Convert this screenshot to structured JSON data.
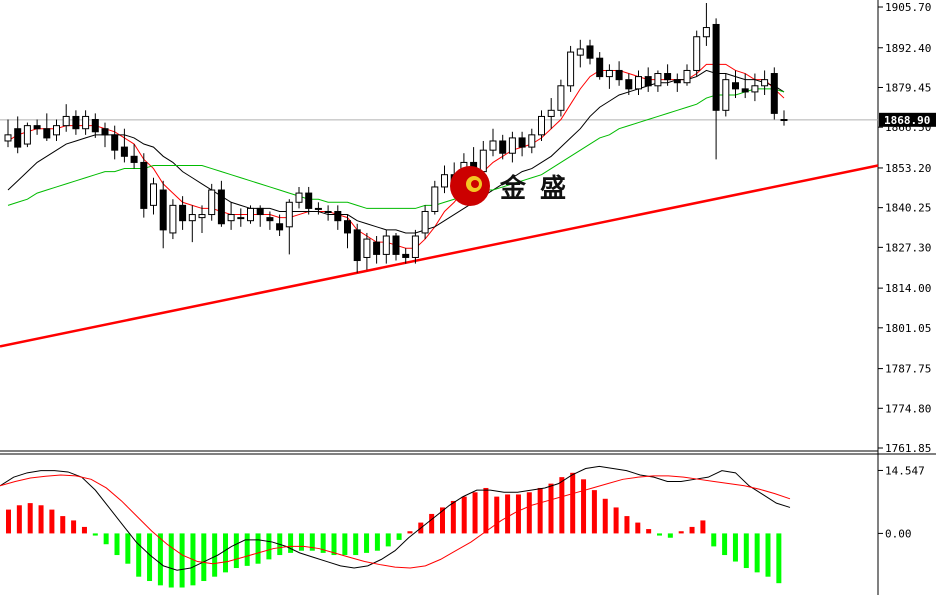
{
  "chart_data": [
    {
      "type": "candlestick",
      "panel": "price",
      "ylim": [
        1761.85,
        1905.7
      ],
      "y_ticks": [
        "1905.70",
        "1892.40",
        "1879.45",
        "1866.50",
        "1853.20",
        "1840.25",
        "1827.30",
        "1814.00",
        "1801.05",
        "1787.75",
        "1774.80",
        "1761.85"
      ],
      "current_price": "1868.90",
      "bull_color": "#ffffff",
      "bear_color": "#000000",
      "ohlc": [
        [
          1862,
          1869,
          1860,
          1864
        ],
        [
          1866,
          1870,
          1858,
          1860
        ],
        [
          1861,
          1868,
          1860,
          1867
        ],
        [
          1867,
          1869,
          1864,
          1866
        ],
        [
          1866,
          1871,
          1862,
          1863
        ],
        [
          1864,
          1869,
          1862,
          1867
        ],
        [
          1867,
          1874,
          1865,
          1870
        ],
        [
          1870,
          1872,
          1864,
          1866
        ],
        [
          1866,
          1872,
          1864,
          1870
        ],
        [
          1869,
          1871,
          1863,
          1865
        ],
        [
          1866,
          1868,
          1860,
          1864
        ],
        [
          1864,
          1867,
          1856,
          1859
        ],
        [
          1860,
          1866,
          1855,
          1857
        ],
        [
          1857,
          1861,
          1853,
          1855
        ],
        [
          1855,
          1858,
          1837,
          1840
        ],
        [
          1841,
          1850,
          1838,
          1848
        ],
        [
          1846,
          1849,
          1827,
          1833
        ],
        [
          1832,
          1843,
          1830,
          1841
        ],
        [
          1841,
          1844,
          1833,
          1836
        ],
        [
          1836,
          1841,
          1829,
          1838
        ],
        [
          1837,
          1841,
          1832,
          1838
        ],
        [
          1838,
          1848,
          1836,
          1846
        ],
        [
          1846,
          1849,
          1834,
          1835
        ],
        [
          1836,
          1842,
          1833,
          1838
        ],
        [
          1837,
          1840,
          1834,
          1837
        ],
        [
          1836,
          1841,
          1835,
          1840
        ],
        [
          1840,
          1841,
          1834,
          1838
        ],
        [
          1837,
          1839,
          1833,
          1836
        ],
        [
          1835,
          1838,
          1831,
          1833
        ],
        [
          1834,
          1843,
          1825,
          1842
        ],
        [
          1842,
          1847,
          1840,
          1845
        ],
        [
          1845,
          1847,
          1838,
          1840
        ],
        [
          1840,
          1842,
          1838,
          1840
        ],
        [
          1839,
          1841,
          1836,
          1839
        ],
        [
          1839,
          1841,
          1833,
          1836
        ],
        [
          1836,
          1838,
          1827,
          1832
        ],
        [
          1833,
          1835,
          1819,
          1823
        ],
        [
          1824,
          1832,
          1820,
          1830
        ],
        [
          1829,
          1831,
          1822,
          1825
        ],
        [
          1825,
          1833,
          1822,
          1831
        ],
        [
          1831,
          1832,
          1823,
          1825
        ],
        [
          1825,
          1827,
          1822,
          1824
        ],
        [
          1824,
          1833,
          1822,
          1831
        ],
        [
          1832,
          1841,
          1830,
          1839
        ],
        [
          1839,
          1849,
          1838,
          1847
        ],
        [
          1847,
          1854,
          1845,
          1851
        ],
        [
          1851,
          1855,
          1848,
          1849
        ],
        [
          1849,
          1858,
          1846,
          1855
        ],
        [
          1855,
          1860,
          1851,
          1852
        ],
        [
          1852,
          1862,
          1850,
          1859
        ],
        [
          1859,
          1866,
          1857,
          1862
        ],
        [
          1862,
          1864,
          1856,
          1858
        ],
        [
          1858,
          1865,
          1855,
          1863
        ],
        [
          1863,
          1865,
          1857,
          1860
        ],
        [
          1860,
          1866,
          1858,
          1864
        ],
        [
          1864,
          1872,
          1862,
          1870
        ],
        [
          1870,
          1876,
          1866,
          1872
        ],
        [
          1872,
          1882,
          1870,
          1880
        ],
        [
          1880,
          1893,
          1878,
          1891
        ],
        [
          1890,
          1895,
          1886,
          1892
        ],
        [
          1893,
          1895,
          1887,
          1889
        ],
        [
          1889,
          1891,
          1882,
          1883
        ],
        [
          1883,
          1887,
          1879,
          1885
        ],
        [
          1885,
          1888,
          1880,
          1882
        ],
        [
          1882,
          1884,
          1877,
          1879
        ],
        [
          1879,
          1885,
          1877,
          1883
        ],
        [
          1883,
          1886,
          1878,
          1880
        ],
        [
          1880,
          1885,
          1878,
          1884
        ],
        [
          1884,
          1887,
          1880,
          1882
        ],
        [
          1882,
          1884,
          1878,
          1881
        ],
        [
          1881,
          1887,
          1880,
          1885
        ],
        [
          1885,
          1898,
          1883,
          1896
        ],
        [
          1896,
          1907,
          1893,
          1899
        ],
        [
          1900,
          1902,
          1856,
          1872
        ],
        [
          1872,
          1884,
          1870,
          1882
        ],
        [
          1881,
          1885,
          1876,
          1879
        ],
        [
          1879,
          1884,
          1876,
          1878
        ],
        [
          1878,
          1884,
          1875,
          1880
        ],
        [
          1880,
          1885,
          1877,
          1882
        ],
        [
          1884,
          1886,
          1869,
          1871
        ],
        [
          1869,
          1872,
          1867,
          1869
        ]
      ],
      "series": [
        {
          "color": "#ff0000",
          "values": [
            1862,
            1864,
            1865,
            1866,
            1866,
            1866,
            1867,
            1867,
            1867,
            1867,
            1866,
            1865,
            1863,
            1861,
            1856,
            1853,
            1848,
            1845,
            1842,
            1841,
            1840,
            1840,
            1839,
            1838,
            1838,
            1838,
            1838,
            1838,
            1837,
            1837,
            1838,
            1839,
            1839,
            1839,
            1838,
            1837,
            1833,
            1831,
            1829,
            1829,
            1828,
            1827,
            1827,
            1830,
            1834,
            1839,
            1842,
            1846,
            1849,
            1852,
            1855,
            1857,
            1859,
            1860,
            1861,
            1863,
            1866,
            1869,
            1874,
            1879,
            1883,
            1885,
            1885,
            1885,
            1884,
            1883,
            1882,
            1882,
            1882,
            1882,
            1882,
            1884,
            1887,
            1887,
            1887,
            1885,
            1884,
            1882,
            1882,
            1879,
            1876
          ]
        },
        {
          "color": "#000000",
          "values": [
            1846,
            1849,
            1852,
            1855,
            1857,
            1859,
            1861,
            1862,
            1863,
            1864,
            1864,
            1864,
            1864,
            1863,
            1861,
            1860,
            1857,
            1855,
            1852,
            1850,
            1848,
            1846,
            1844,
            1842,
            1841,
            1840,
            1840,
            1840,
            1839,
            1839,
            1839,
            1839,
            1839,
            1838,
            1838,
            1838,
            1836,
            1835,
            1834,
            1833,
            1833,
            1832,
            1832,
            1833,
            1834,
            1836,
            1838,
            1840,
            1842,
            1844,
            1846,
            1848,
            1850,
            1852,
            1853,
            1855,
            1857,
            1860,
            1863,
            1866,
            1870,
            1873,
            1875,
            1877,
            1878,
            1879,
            1880,
            1881,
            1881,
            1882,
            1882,
            1883,
            1885,
            1884,
            1884,
            1883,
            1882,
            1882,
            1881,
            1880,
            1878
          ]
        },
        {
          "color": "#00bb00",
          "values": [
            1841,
            1842,
            1843,
            1845,
            1846,
            1847,
            1848,
            1849,
            1850,
            1851,
            1852,
            1852,
            1853,
            1853,
            1853,
            1854,
            1854,
            1854,
            1854,
            1854,
            1854,
            1853,
            1852,
            1851,
            1850,
            1849,
            1848,
            1847,
            1846,
            1845,
            1844,
            1843,
            1843,
            1842,
            1842,
            1842,
            1841,
            1840,
            1840,
            1840,
            1840,
            1840,
            1840,
            1841,
            1841,
            1842,
            1843,
            1844,
            1845,
            1846,
            1846,
            1847,
            1848,
            1849,
            1850,
            1851,
            1853,
            1855,
            1857,
            1859,
            1861,
            1863,
            1864,
            1866,
            1867,
            1868,
            1869,
            1870,
            1871,
            1872,
            1873,
            1874,
            1876,
            1877,
            1877,
            1877,
            1878,
            1879,
            1879,
            1879,
            1878
          ]
        }
      ],
      "trendline": {
        "color": "#ff0000",
        "start": [
          0,
          1795
        ],
        "end": [
          86,
          1854
        ]
      }
    },
    {
      "type": "macd",
      "panel": "indicator",
      "ylim": [
        -14.0,
        16.5
      ],
      "y_ticks": [
        "14.547",
        "0.00"
      ],
      "pos_color": "#ff0000",
      "neg_color": "#00ff00",
      "histogram": [
        5.5,
        6.5,
        7,
        6.5,
        5.5,
        4,
        3,
        1.5,
        -0.5,
        -2.5,
        -5,
        -7,
        -10,
        -11,
        -12,
        -12.5,
        -12.5,
        -12,
        -11,
        -10,
        -9,
        -8,
        -7.5,
        -7,
        -6,
        -5,
        -4.5,
        -4,
        -4,
        -4.5,
        -5,
        -5,
        -5,
        -4.5,
        -4,
        -3,
        -1.5,
        0.5,
        2.5,
        4.5,
        6,
        7.5,
        8.5,
        9.5,
        10.5,
        8.5,
        9,
        9,
        9.5,
        10.5,
        11.5,
        13,
        14,
        12.5,
        10,
        8,
        6,
        4,
        2.5,
        1,
        -0.5,
        -1,
        0.5,
        1.5,
        3,
        -3,
        -5,
        -6.5,
        -8,
        -9,
        -10,
        -11.5
      ],
      "series": [
        {
          "color": "#000000",
          "values": [
            11,
            13,
            14,
            14.5,
            14.5,
            14.2,
            13,
            10,
            6,
            2,
            -2,
            -5,
            -7.5,
            -8.5,
            -8,
            -6.5,
            -5,
            -3,
            -1.5,
            -1.5,
            -2,
            -3,
            -4.5,
            -5.5,
            -6.5,
            -7.5,
            -8,
            -7.5,
            -6,
            -4,
            -1,
            1.5,
            4,
            6.5,
            8.5,
            10,
            10,
            9.5,
            9.5,
            10,
            10.5,
            11.5,
            13.5,
            15,
            15.5,
            15,
            14.5,
            13.5,
            13,
            12,
            12,
            12.5,
            13,
            14.5,
            14,
            11,
            9,
            7,
            6
          ]
        },
        {
          "color": "#ff0000",
          "values": [
            11,
            12,
            12.8,
            13.2,
            13.5,
            13.3,
            12.5,
            10.5,
            7.5,
            4,
            0.5,
            -2.5,
            -5,
            -6.5,
            -7,
            -6.5,
            -5.5,
            -4.5,
            -3.5,
            -3,
            -3,
            -3.5,
            -4.5,
            -5.5,
            -6.5,
            -7.2,
            -7.8,
            -8,
            -7.5,
            -6,
            -4,
            -2,
            0.5,
            3,
            5,
            6.5,
            7.5,
            8.5,
            9.5,
            10.5,
            11.5,
            12.5,
            13,
            13.3,
            13.3,
            13,
            12.5,
            12,
            11.5,
            11,
            10.2,
            9.2,
            8
          ]
        }
      ]
    }
  ],
  "watermark": {
    "text": "金盛",
    "color": "#cc0000"
  }
}
